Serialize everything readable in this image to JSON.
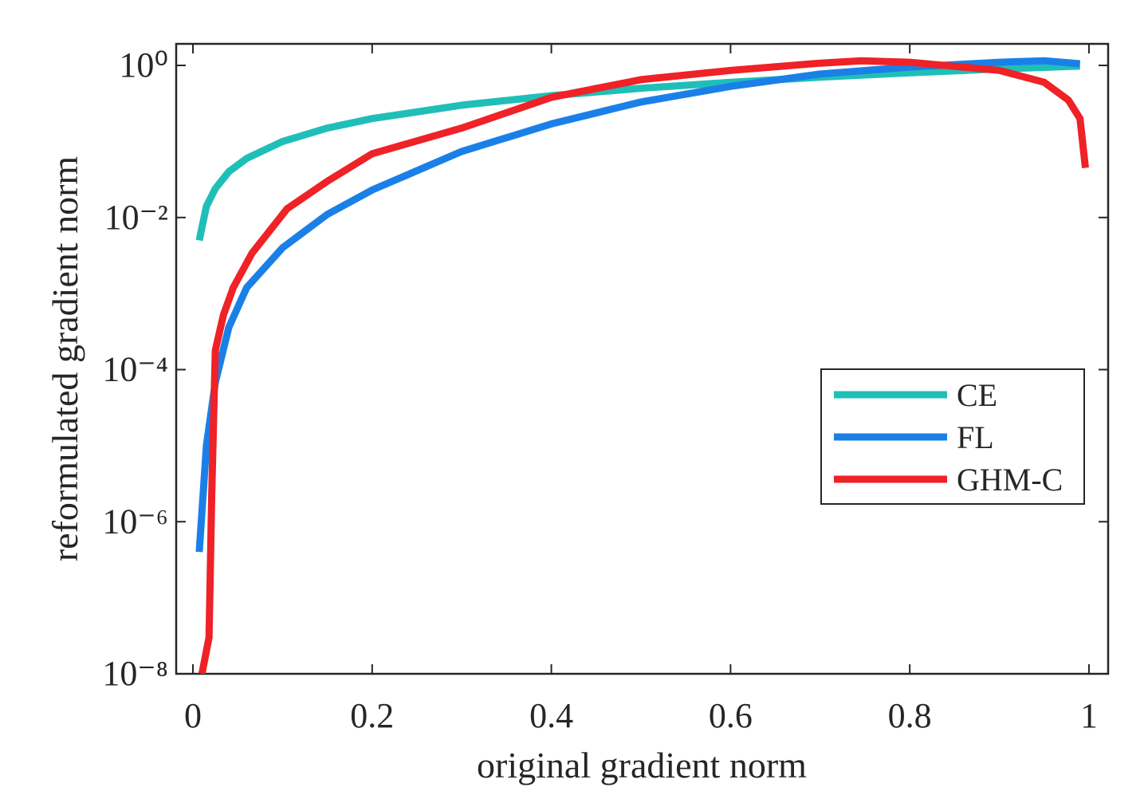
{
  "chart_data": {
    "type": "line",
    "log_y": true,
    "xlabel": "original gradient norm",
    "ylabel": "reformulated gradient norm",
    "xlim": [
      -0.0187,
      1.0214
    ],
    "ylim": [
      1e-08,
      1.92
    ],
    "xticks": [
      0,
      0.2,
      0.4,
      0.6,
      0.8,
      1
    ],
    "yticks": [
      {
        "value": 1e-08,
        "label": "10⁻⁸"
      },
      {
        "value": 1e-06,
        "label": "10⁻⁶"
      },
      {
        "value": 0.0001,
        "label": "10⁻⁴"
      },
      {
        "value": 0.01,
        "label": "10⁻²"
      },
      {
        "value": 1,
        "label": "10⁰"
      }
    ],
    "legend": "right",
    "series": [
      {
        "name": "CE",
        "color": "#1fbfb8",
        "x": [
          0.007,
          0.015,
          0.025,
          0.04,
          0.06,
          0.1,
          0.15,
          0.2,
          0.3,
          0.4,
          0.5,
          0.6,
          0.7,
          0.8,
          0.9,
          0.99
        ],
        "values": [
          0.005,
          0.014,
          0.024,
          0.04,
          0.06,
          0.1,
          0.15,
          0.2,
          0.3,
          0.4,
          0.5,
          0.6,
          0.7,
          0.8,
          0.9,
          0.98
        ]
      },
      {
        "name": "FL",
        "color": "#1a80e8",
        "x": [
          0.007,
          0.015,
          0.025,
          0.04,
          0.06,
          0.1,
          0.15,
          0.2,
          0.3,
          0.4,
          0.5,
          0.6,
          0.7,
          0.8,
          0.9,
          0.95,
          0.99
        ],
        "values": [
          4e-07,
          1e-05,
          6.8e-05,
          0.00036,
          0.0012,
          0.004,
          0.011,
          0.023,
          0.074,
          0.17,
          0.33,
          0.53,
          0.77,
          0.95,
          1.1,
          1.15,
          1.05
        ]
      },
      {
        "name": "GHM-C",
        "color": "#ee2227",
        "x": [
          0.01,
          0.018,
          0.021,
          0.025,
          0.034,
          0.045,
          0.066,
          0.105,
          0.15,
          0.2,
          0.3,
          0.4,
          0.5,
          0.6,
          0.7,
          0.746,
          0.8,
          0.9,
          0.95,
          0.977,
          0.99,
          0.996
        ],
        "values": [
          1e-08,
          3e-08,
          2.3e-06,
          0.00018,
          0.00052,
          0.0012,
          0.0034,
          0.013,
          0.03,
          0.069,
          0.15,
          0.38,
          0.65,
          0.86,
          1.07,
          1.15,
          1.1,
          0.86,
          0.6,
          0.35,
          0.2,
          0.045
        ]
      }
    ]
  }
}
